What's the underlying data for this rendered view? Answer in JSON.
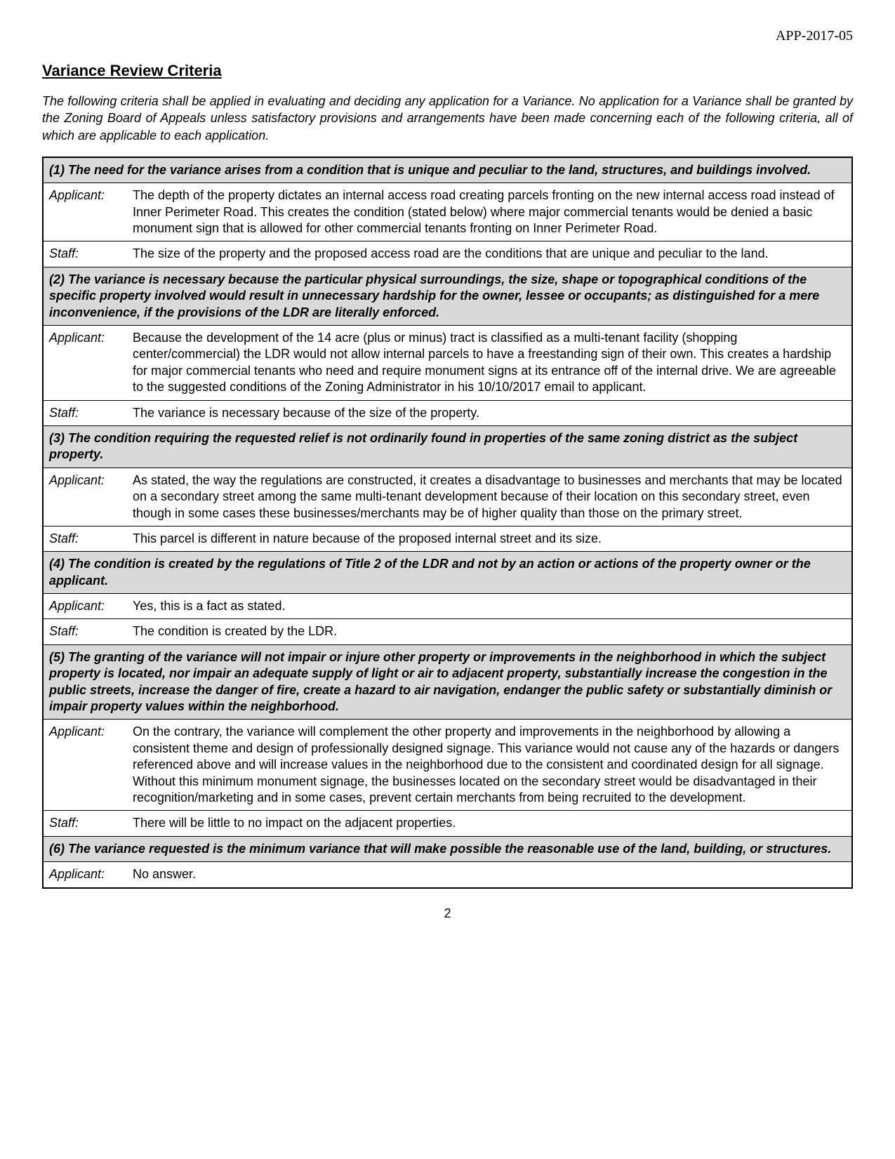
{
  "header": {
    "case_no": "APP-2017-05"
  },
  "title": "Variance  Review  Criteria",
  "intro": "The following criteria shall be applied in evaluating and deciding any application for a Variance.  No application for a Variance shall be granted by the Zoning Board of Appeals unless satisfactory provisions and arrangements have been made concerning each of the following criteria, all of which are applicable to each application.",
  "criteria": [
    {
      "heading": "(1)   The need for the variance arises from a condition that is unique and peculiar to the land, structures, and buildings involved.",
      "applicant": "The depth of the property dictates an internal access road creating parcels fronting on the new internal access road instead of Inner Perimeter Road. This creates the condition (stated below) where major commercial tenants would be denied a basic monument sign that is allowed for other commercial tenants fronting on Inner Perimeter Road.",
      "staff": "The size of the property and the proposed access road are the conditions that are unique and peculiar to the land."
    },
    {
      "heading": "(2)   The variance is necessary because the particular physical surroundings, the size, shape or topographical conditions of the specific property involved would result in unnecessary hardship for the owner, lessee or occupants; as distinguished for a mere inconvenience, if the provisions of the LDR are literally enforced.",
      "applicant": "Because the development of the 14 acre (plus or minus) tract is classified as a multi-tenant facility (shopping center/commercial) the LDR would not allow internal parcels to have a freestanding sign of their own. This creates a hardship for major commercial tenants who need and require monument signs at its entrance off of the internal drive. We are agreeable to the suggested conditions of the Zoning Administrator in his 10/10/2017 email to applicant.",
      "staff": "The variance is necessary because of the size of the property."
    },
    {
      "heading": "(3)   The condition requiring the requested relief is not ordinarily found in properties of the same zoning district as the subject property.",
      "applicant": "As stated, the way the regulations are constructed, it creates a disadvantage to businesses and merchants that may be located on a secondary street among the same multi-tenant development because of their location on this secondary street, even though in some cases these businesses/merchants may be of higher quality than those on the primary street.",
      "staff": "This parcel is different in nature because of the proposed internal street and its size."
    },
    {
      "heading": "(4)   The condition is created by the regulations of Title 2 of the LDR and not by an action or actions of the property owner or the applicant.",
      "applicant": "Yes, this is a fact as stated.",
      "staff": "The condition is created by the LDR."
    },
    {
      "heading": "(5)   The granting of the variance will not impair or injure other property or improvements in the neighborhood in which the subject property is located, nor impair an adequate supply of light or air to adjacent property, substantially increase the congestion in the public streets, increase the danger of fire, create a hazard to air navigation, endanger the public safety or substantially diminish or impair property values within the neighborhood.",
      "applicant": "On the contrary, the variance will complement the other property and improvements in the neighborhood by allowing a consistent theme and design of professionally designed signage. This variance would not cause any of the hazards or dangers referenced above and will increase values in the neighborhood due to the consistent and coordinated design for all signage.  Without this minimum monument signage, the businesses located on the secondary street would be disadvantaged in their recognition/marketing and in some cases, prevent certain merchants from being recruited to the development.",
      "staff": "There will be little to no impact on the adjacent properties."
    },
    {
      "heading": "(6)   The variance requested is the minimum variance that will make possible the reasonable use of the land, building, or structures.",
      "applicant": "No answer.",
      "staff": null
    }
  ],
  "labels": {
    "applicant": "Applicant:",
    "staff": "Staff:"
  },
  "page_number": "2"
}
